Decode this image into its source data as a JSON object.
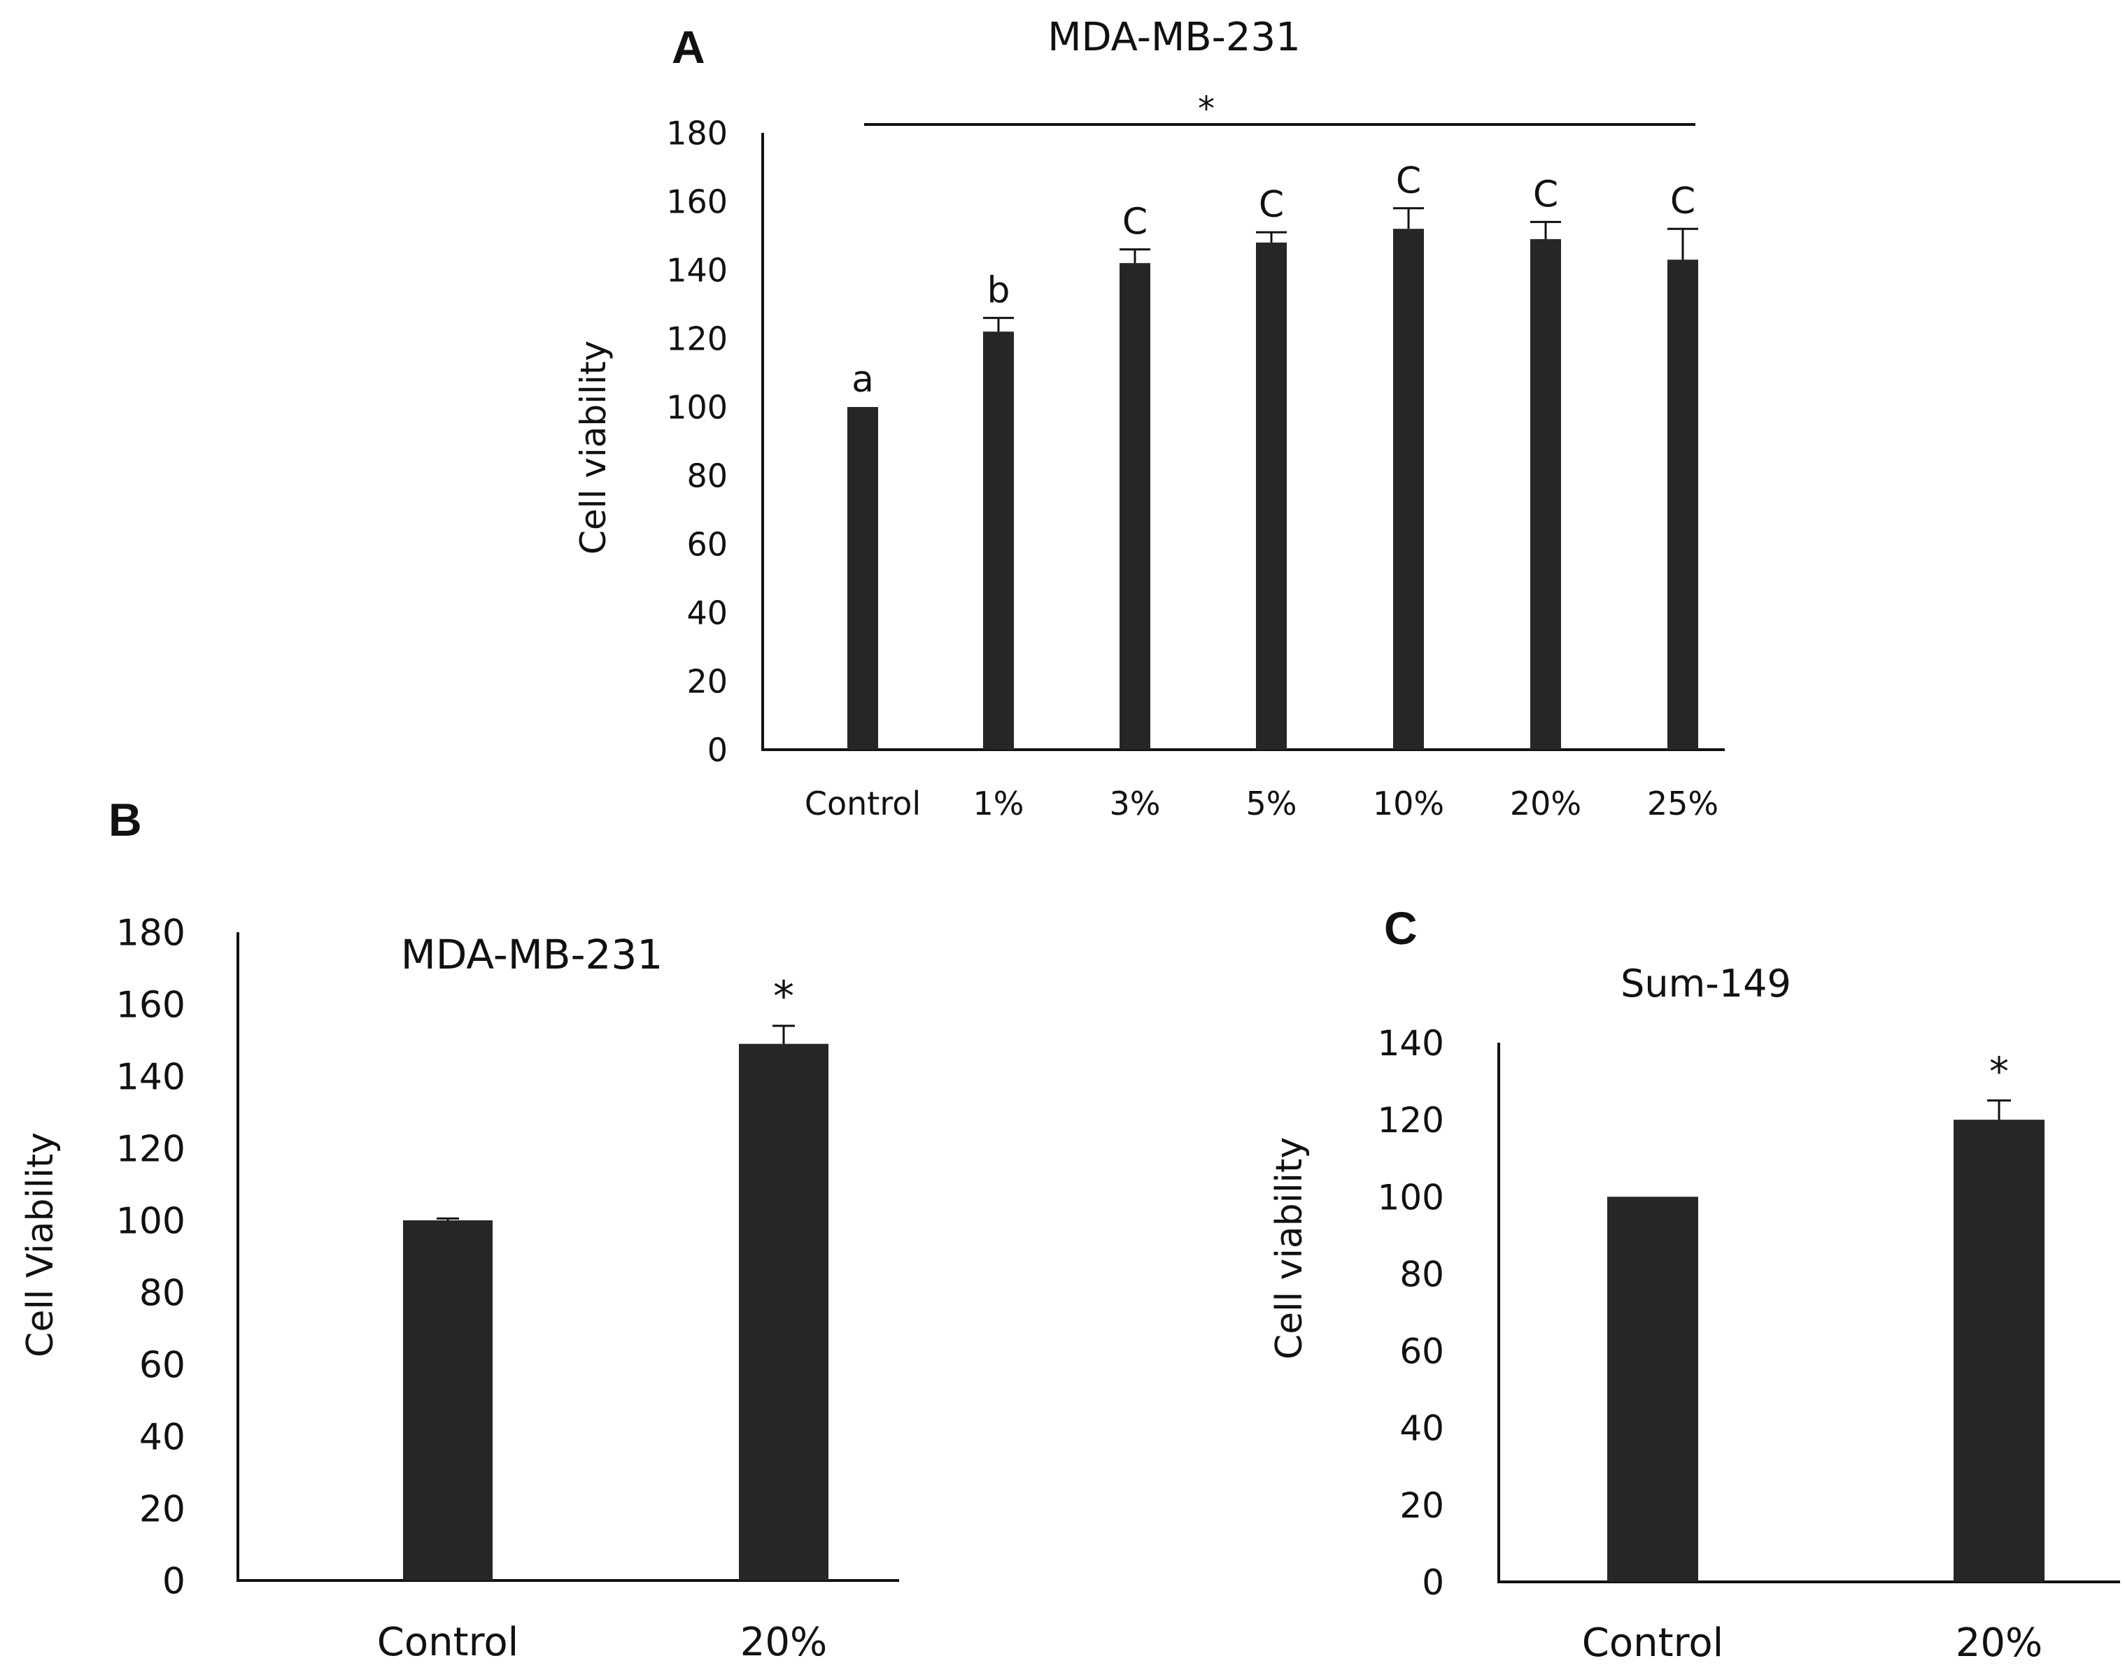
{
  "colors": {
    "bar": "#262626",
    "axis": "#111111",
    "background": "#ffffff"
  },
  "chart_data": [
    {
      "type": "bar",
      "panel_label": "A",
      "title": "MDA-MB-231",
      "xlabel": "",
      "ylabel": "Cell viability",
      "ylim": [
        0,
        180
      ],
      "yticks": [
        0,
        20,
        40,
        60,
        80,
        100,
        120,
        140,
        160,
        180
      ],
      "categories": [
        "Control",
        "1%",
        "3%",
        "5%",
        "10%",
        "20%",
        "25%"
      ],
      "values": [
        100,
        122,
        142,
        148,
        152,
        149,
        143
      ],
      "errors": [
        0,
        4,
        4,
        3,
        6,
        5,
        9
      ],
      "annotations": [
        "a",
        "b",
        "C",
        "C",
        "C",
        "C",
        "C"
      ],
      "significance": {
        "symbol": "*",
        "span": [
          "Control",
          "25%"
        ]
      },
      "grid": false
    },
    {
      "type": "bar",
      "panel_label": "B",
      "title": "MDA-MB-231",
      "xlabel": "",
      "ylabel": "Cell Viability",
      "ylim": [
        0,
        180
      ],
      "yticks": [
        0,
        20,
        40,
        60,
        80,
        100,
        120,
        140,
        160,
        180
      ],
      "categories": [
        "Control",
        "20%"
      ],
      "values": [
        100,
        149
      ],
      "errors": [
        0.5,
        5
      ],
      "annotations": [
        "",
        "*"
      ],
      "grid": false
    },
    {
      "type": "bar",
      "panel_label": "C",
      "title": "Sum-149",
      "xlabel": "",
      "ylabel": "Cell viability",
      "ylim": [
        0,
        140
      ],
      "yticks": [
        0,
        20,
        40,
        60,
        80,
        100,
        120,
        140
      ],
      "categories": [
        "Control",
        "20%"
      ],
      "values": [
        100,
        120
      ],
      "errors": [
        0,
        5
      ],
      "annotations": [
        "",
        "*"
      ],
      "grid": false
    }
  ]
}
